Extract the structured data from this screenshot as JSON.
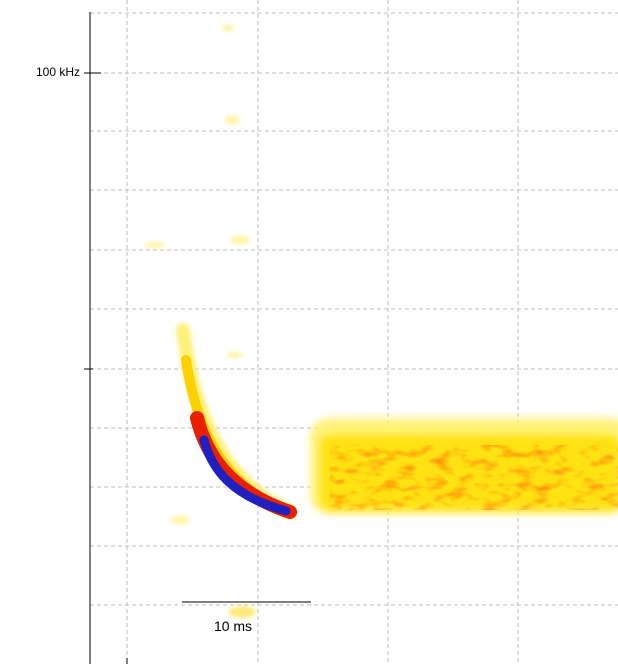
{
  "y_axis": {
    "tick_labels": [
      "100 kHz"
    ]
  },
  "scale_bar": {
    "label": "10 ms"
  }
}
